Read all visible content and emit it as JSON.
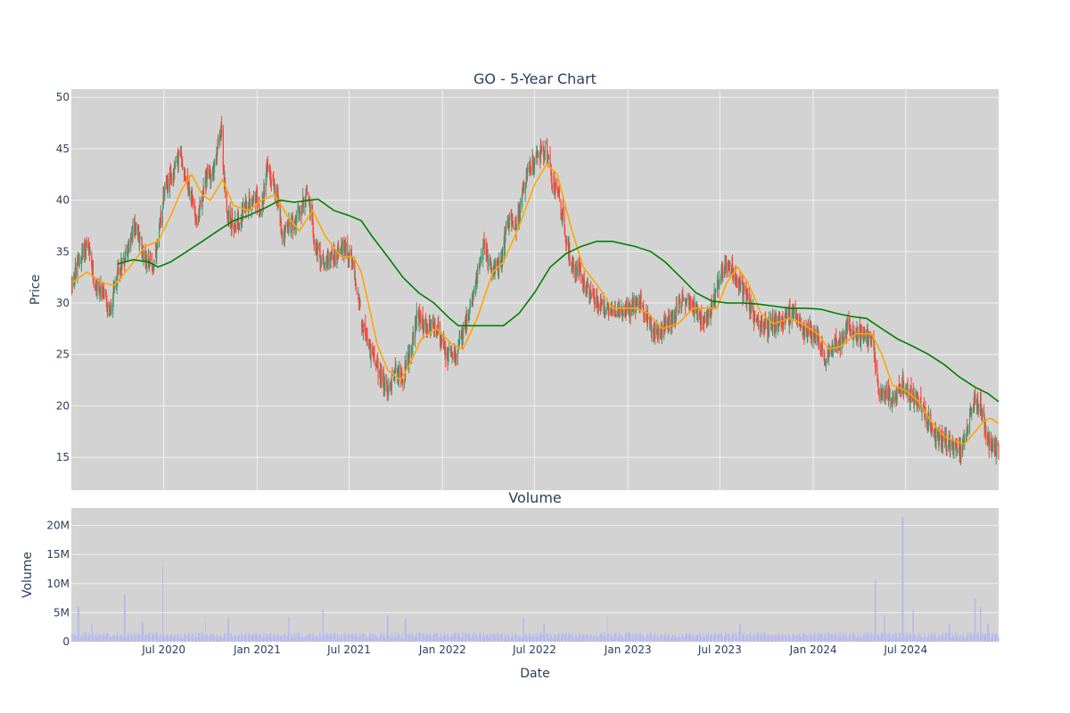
{
  "colors": {
    "plot_bg": "#d3d3d3",
    "grid": "#f0f0f0",
    "up": "#3d9970",
    "down": "#ff4136",
    "ma_short": "#ffa500",
    "ma_long": "#008000",
    "volume": "#b8b8f0",
    "text": "#2a3f5f"
  },
  "chart_data": [
    {
      "type": "candlestick",
      "title": "GO - 5-Year Chart",
      "ylabel": "Price",
      "xlim": [
        "2020-01-01",
        "2024-12-31"
      ],
      "ylim": [
        11.8,
        50.8
      ],
      "yticks": [
        15,
        20,
        25,
        30,
        35,
        40,
        45,
        50
      ],
      "grid": true,
      "price_path": [
        [
          "2020-01-02",
          32.0
        ],
        [
          "2020-01-20",
          34.5
        ],
        [
          "2020-02-01",
          35.8
        ],
        [
          "2020-02-15",
          32.0
        ],
        [
          "2020-03-01",
          31.0
        ],
        [
          "2020-03-18",
          29.0
        ],
        [
          "2020-04-01",
          33.0
        ],
        [
          "2020-04-20",
          35.0
        ],
        [
          "2020-05-05",
          37.5
        ],
        [
          "2020-05-25",
          34.5
        ],
        [
          "2020-06-10",
          33.5
        ],
        [
          "2020-06-20",
          35.5
        ],
        [
          "2020-07-01",
          41.0
        ],
        [
          "2020-07-15",
          42.0
        ],
        [
          "2020-08-01",
          44.5
        ],
        [
          "2020-08-20",
          41.0
        ],
        [
          "2020-09-05",
          38.0
        ],
        [
          "2020-09-25",
          42.5
        ],
        [
          "2020-10-10",
          43.0
        ],
        [
          "2020-10-22",
          47.5
        ],
        [
          "2020-11-01",
          38.5
        ],
        [
          "2020-11-20",
          37.5
        ],
        [
          "2020-12-10",
          39.5
        ],
        [
          "2020-12-28",
          40.5
        ],
        [
          "2021-01-08",
          38.5
        ],
        [
          "2021-01-20",
          43.0
        ],
        [
          "2021-02-08",
          41.0
        ],
        [
          "2021-02-20",
          36.5
        ],
        [
          "2021-03-08",
          37.5
        ],
        [
          "2021-03-25",
          38.5
        ],
        [
          "2021-04-10",
          41.0
        ],
        [
          "2021-04-25",
          35.5
        ],
        [
          "2021-05-10",
          34.0
        ],
        [
          "2021-05-25",
          34.5
        ],
        [
          "2021-06-10",
          35.0
        ],
        [
          "2021-06-25",
          35.5
        ],
        [
          "2021-07-08",
          33.5
        ],
        [
          "2021-07-20",
          30.5
        ],
        [
          "2021-07-28",
          27.5
        ],
        [
          "2021-08-15",
          25.0
        ],
        [
          "2021-09-01",
          23.0
        ],
        [
          "2021-09-15",
          21.5
        ],
        [
          "2021-10-01",
          23.5
        ],
        [
          "2021-10-15",
          22.5
        ],
        [
          "2021-10-28",
          25.0
        ],
        [
          "2021-11-10",
          28.5
        ],
        [
          "2021-12-01",
          27.5
        ],
        [
          "2021-12-20",
          27.5
        ],
        [
          "2022-01-10",
          25.0
        ],
        [
          "2022-01-25",
          25.0
        ],
        [
          "2022-02-10",
          27.0
        ],
        [
          "2022-02-25",
          29.5
        ],
        [
          "2022-03-10",
          33.0
        ],
        [
          "2022-03-25",
          35.5
        ],
        [
          "2022-04-10",
          33.0
        ],
        [
          "2022-04-25",
          34.0
        ],
        [
          "2022-05-10",
          38.5
        ],
        [
          "2022-05-25",
          37.0
        ],
        [
          "2022-06-10",
          41.5
        ],
        [
          "2022-06-25",
          43.5
        ],
        [
          "2022-07-10",
          44.5
        ],
        [
          "2022-07-25",
          45.0
        ],
        [
          "2022-08-05",
          41.5
        ],
        [
          "2022-08-20",
          40.0
        ],
        [
          "2022-09-01",
          36.0
        ],
        [
          "2022-09-15",
          33.5
        ],
        [
          "2022-10-01",
          33.0
        ],
        [
          "2022-10-20",
          30.5
        ],
        [
          "2022-11-05",
          30.0
        ],
        [
          "2022-11-25",
          29.0
        ],
        [
          "2022-12-15",
          29.5
        ],
        [
          "2023-01-05",
          29.5
        ],
        [
          "2023-01-25",
          30.0
        ],
        [
          "2023-02-10",
          28.0
        ],
        [
          "2023-02-25",
          27.0
        ],
        [
          "2023-03-15",
          28.0
        ],
        [
          "2023-04-01",
          28.5
        ],
        [
          "2023-04-20",
          30.5
        ],
        [
          "2023-05-10",
          30.0
        ],
        [
          "2023-05-25",
          28.5
        ],
        [
          "2023-06-10",
          29.0
        ],
        [
          "2023-06-25",
          31.5
        ],
        [
          "2023-07-10",
          33.5
        ],
        [
          "2023-07-25",
          33.5
        ],
        [
          "2023-08-05",
          32.0
        ],
        [
          "2023-08-20",
          31.0
        ],
        [
          "2023-09-05",
          29.0
        ],
        [
          "2023-09-25",
          27.5
        ],
        [
          "2023-10-10",
          28.0
        ],
        [
          "2023-10-25",
          28.5
        ],
        [
          "2023-11-10",
          28.5
        ],
        [
          "2023-11-25",
          29.0
        ],
        [
          "2023-12-10",
          27.5
        ],
        [
          "2023-12-25",
          27.5
        ],
        [
          "2024-01-10",
          26.5
        ],
        [
          "2024-01-25",
          24.5
        ],
        [
          "2024-02-10",
          26.0
        ],
        [
          "2024-02-25",
          26.0
        ],
        [
          "2024-03-10",
          28.0
        ],
        [
          "2024-03-25",
          27.0
        ],
        [
          "2024-04-10",
          27.0
        ],
        [
          "2024-04-28",
          26.0
        ],
        [
          "2024-05-10",
          21.5
        ],
        [
          "2024-05-25",
          21.0
        ],
        [
          "2024-06-10",
          20.5
        ],
        [
          "2024-06-25",
          22.0
        ],
        [
          "2024-07-10",
          21.0
        ],
        [
          "2024-07-25",
          20.5
        ],
        [
          "2024-08-10",
          19.0
        ],
        [
          "2024-08-25",
          17.5
        ],
        [
          "2024-09-10",
          16.5
        ],
        [
          "2024-09-25",
          16.5
        ],
        [
          "2024-10-10",
          15.5
        ],
        [
          "2024-10-20",
          16.0
        ],
        [
          "2024-11-01",
          18.5
        ],
        [
          "2024-11-15",
          20.5
        ],
        [
          "2024-11-25",
          20.0
        ],
        [
          "2024-12-10",
          16.5
        ],
        [
          "2024-12-31",
          15.5
        ]
      ],
      "ma_short": [
        [
          "2020-01-02",
          32.0
        ],
        [
          "2020-02-01",
          33.0
        ],
        [
          "2020-03-01",
          32.0
        ],
        [
          "2020-03-25",
          31.7
        ],
        [
          "2020-04-25",
          33.5
        ],
        [
          "2020-05-25",
          35.5
        ],
        [
          "2020-06-20",
          36.0
        ],
        [
          "2020-07-15",
          38.5
        ],
        [
          "2020-08-05",
          41.0
        ],
        [
          "2020-08-25",
          42.5
        ],
        [
          "2020-09-15",
          40.5
        ],
        [
          "2020-10-01",
          40.0
        ],
        [
          "2020-10-25",
          42.0
        ],
        [
          "2020-11-15",
          39.5
        ],
        [
          "2020-12-15",
          39.0
        ],
        [
          "2021-01-10",
          40.0
        ],
        [
          "2021-02-05",
          40.5
        ],
        [
          "2021-03-01",
          38.5
        ],
        [
          "2021-03-25",
          37.0
        ],
        [
          "2021-04-20",
          39.0
        ],
        [
          "2021-05-15",
          36.5
        ],
        [
          "2021-06-15",
          34.5
        ],
        [
          "2021-07-10",
          34.5
        ],
        [
          "2021-07-25",
          33.0
        ],
        [
          "2021-08-10",
          29.5
        ],
        [
          "2021-08-25",
          26.0
        ],
        [
          "2021-09-15",
          23.5
        ],
        [
          "2021-10-10",
          22.5
        ],
        [
          "2021-10-28",
          24.0
        ],
        [
          "2021-11-20",
          26.5
        ],
        [
          "2021-12-20",
          27.5
        ],
        [
          "2022-01-20",
          26.0
        ],
        [
          "2022-02-10",
          25.5
        ],
        [
          "2022-03-10",
          28.5
        ],
        [
          "2022-04-10",
          33.0
        ],
        [
          "2022-05-01",
          34.0
        ],
        [
          "2022-06-01",
          37.5
        ],
        [
          "2022-07-01",
          41.5
        ],
        [
          "2022-07-25",
          43.5
        ],
        [
          "2022-08-15",
          42.5
        ],
        [
          "2022-09-10",
          37.5
        ],
        [
          "2022-10-05",
          33.5
        ],
        [
          "2022-11-05",
          31.5
        ],
        [
          "2022-12-01",
          29.5
        ],
        [
          "2023-01-15",
          29.5
        ],
        [
          "2023-02-10",
          29.0
        ],
        [
          "2023-03-10",
          27.5
        ],
        [
          "2023-04-10",
          28.0
        ],
        [
          "2023-05-10",
          29.5
        ],
        [
          "2023-06-01",
          29.5
        ],
        [
          "2023-06-25",
          29.5
        ],
        [
          "2023-07-15",
          32.0
        ],
        [
          "2023-08-05",
          33.5
        ],
        [
          "2023-08-25",
          32.0
        ],
        [
          "2023-09-20",
          29.0
        ],
        [
          "2023-10-15",
          28.0
        ],
        [
          "2023-11-15",
          28.5
        ],
        [
          "2023-12-10",
          28.0
        ],
        [
          "2024-01-10",
          27.0
        ],
        [
          "2024-02-01",
          25.5
        ],
        [
          "2024-02-25",
          25.8
        ],
        [
          "2024-03-25",
          27.0
        ],
        [
          "2024-04-25",
          27.0
        ],
        [
          "2024-05-15",
          25.0
        ],
        [
          "2024-06-05",
          22.0
        ],
        [
          "2024-07-01",
          21.5
        ],
        [
          "2024-07-25",
          20.5
        ],
        [
          "2024-08-20",
          18.5
        ],
        [
          "2024-09-15",
          17.0
        ],
        [
          "2024-10-10",
          16.5
        ],
        [
          "2024-10-25",
          16.3
        ],
        [
          "2024-11-15",
          17.5
        ],
        [
          "2024-12-01",
          18.5
        ],
        [
          "2024-12-15",
          18.8
        ],
        [
          "2024-12-31",
          18.3
        ]
      ],
      "ma_long": [
        [
          "2020-04-01",
          33.8
        ],
        [
          "2020-05-01",
          34.2
        ],
        [
          "2020-06-01",
          34.0
        ],
        [
          "2020-06-20",
          33.5
        ],
        [
          "2020-07-15",
          34.0
        ],
        [
          "2020-08-15",
          35.0
        ],
        [
          "2020-09-15",
          36.0
        ],
        [
          "2020-10-15",
          37.0
        ],
        [
          "2020-11-15",
          38.0
        ],
        [
          "2020-12-15",
          38.5
        ],
        [
          "2021-01-15",
          39.2
        ],
        [
          "2021-02-15",
          40.0
        ],
        [
          "2021-03-15",
          39.8
        ],
        [
          "2021-04-15",
          40.0
        ],
        [
          "2021-05-01",
          40.1
        ],
        [
          "2021-06-01",
          39.0
        ],
        [
          "2021-07-01",
          38.5
        ],
        [
          "2021-07-25",
          38.0
        ],
        [
          "2021-08-15",
          36.5
        ],
        [
          "2021-09-15",
          34.5
        ],
        [
          "2021-10-15",
          32.5
        ],
        [
          "2021-11-15",
          31.0
        ],
        [
          "2021-12-15",
          30.0
        ],
        [
          "2022-01-15",
          28.5
        ],
        [
          "2022-02-01",
          27.8
        ],
        [
          "2022-03-01",
          27.8
        ],
        [
          "2022-04-01",
          27.8
        ],
        [
          "2022-05-01",
          27.8
        ],
        [
          "2022-06-01",
          29.0
        ],
        [
          "2022-07-01",
          31.0
        ],
        [
          "2022-08-01",
          33.5
        ],
        [
          "2022-09-01",
          34.8
        ],
        [
          "2022-10-01",
          35.5
        ],
        [
          "2022-11-01",
          36.0
        ],
        [
          "2022-12-01",
          36.0
        ],
        [
          "2023-01-15",
          35.5
        ],
        [
          "2023-02-15",
          35.0
        ],
        [
          "2023-03-15",
          34.0
        ],
        [
          "2023-04-15",
          32.5
        ],
        [
          "2023-05-15",
          31.0
        ],
        [
          "2023-06-15",
          30.2
        ],
        [
          "2023-07-15",
          30.0
        ],
        [
          "2023-08-15",
          30.0
        ],
        [
          "2023-09-15",
          29.9
        ],
        [
          "2023-10-15",
          29.7
        ],
        [
          "2023-11-15",
          29.5
        ],
        [
          "2023-12-15",
          29.5
        ],
        [
          "2024-01-15",
          29.4
        ],
        [
          "2024-02-15",
          29.0
        ],
        [
          "2024-03-15",
          28.7
        ],
        [
          "2024-04-15",
          28.5
        ],
        [
          "2024-05-15",
          27.5
        ],
        [
          "2024-06-15",
          26.5
        ],
        [
          "2024-07-15",
          25.8
        ],
        [
          "2024-08-15",
          25.0
        ],
        [
          "2024-09-15",
          24.0
        ],
        [
          "2024-10-15",
          22.8
        ],
        [
          "2024-11-15",
          21.8
        ],
        [
          "2024-12-10",
          21.2
        ],
        [
          "2024-12-31",
          20.4
        ]
      ],
      "gaps": [
        "2021-07-27",
        "2024-05-03"
      ]
    },
    {
      "type": "bar",
      "title": "Volume",
      "xlabel": "Date",
      "ylabel": "Volume",
      "ylim": [
        0,
        23000000
      ],
      "yticks": [
        0,
        5000000,
        10000000,
        15000000,
        20000000
      ],
      "ytick_labels": [
        "0",
        "5M",
        "10M",
        "15M",
        "20M"
      ],
      "xticks": [
        "2020-07-01",
        "2021-01-01",
        "2021-07-01",
        "2022-01-01",
        "2022-07-01",
        "2023-01-01",
        "2023-07-01",
        "2024-01-01",
        "2024-07-01"
      ],
      "xtick_labels": [
        "Jul 2020",
        "Jan 2021",
        "Jul 2021",
        "Jan 2022",
        "Jul 2022",
        "Jan 2023",
        "Jul 2023",
        "Jan 2024",
        "Jul 2024"
      ],
      "baseline_volume": 1200000,
      "spikes": [
        [
          "2020-01-15",
          6000000
        ],
        [
          "2020-02-10",
          3000000
        ],
        [
          "2020-04-15",
          8000000
        ],
        [
          "2020-05-20",
          3500000
        ],
        [
          "2020-06-28",
          13000000
        ],
        [
          "2020-09-20",
          3500000
        ],
        [
          "2020-11-05",
          4000000
        ],
        [
          "2021-03-05",
          4200000
        ],
        [
          "2021-05-10",
          5500000
        ],
        [
          "2021-09-15",
          4500000
        ],
        [
          "2021-10-20",
          4000000
        ],
        [
          "2022-06-10",
          4000000
        ],
        [
          "2022-07-20",
          3000000
        ],
        [
          "2022-11-20",
          4500000
        ],
        [
          "2023-08-10",
          3000000
        ],
        [
          "2024-05-03",
          10500000
        ],
        [
          "2024-05-20",
          4500000
        ],
        [
          "2024-06-25",
          21500000
        ],
        [
          "2024-07-15",
          5500000
        ],
        [
          "2024-09-25",
          3000000
        ],
        [
          "2024-11-15",
          7500000
        ],
        [
          "2024-11-25",
          6000000
        ],
        [
          "2024-12-10",
          3000000
        ]
      ]
    }
  ]
}
